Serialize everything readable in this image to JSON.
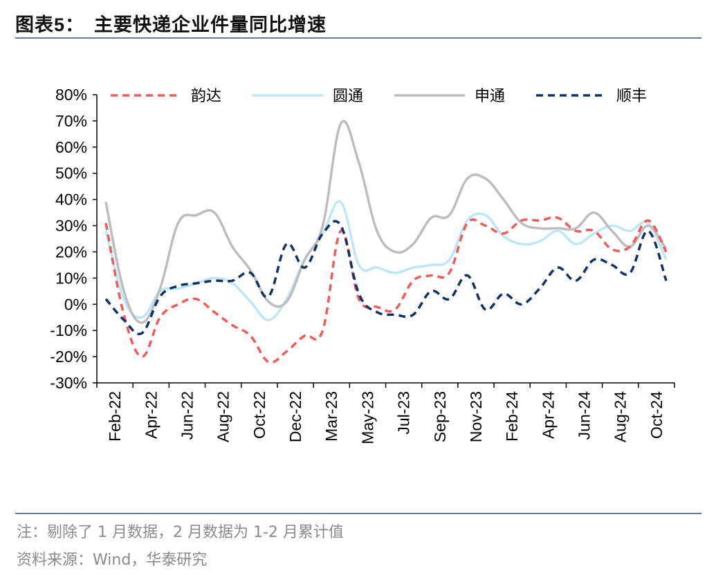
{
  "header": {
    "title_prefix": "图表",
    "title_num": "5：",
    "title_text": "主要快递企业件量同比增速"
  },
  "footer": {
    "note": "注：剔除了 1 月数据，2 月数据为 1-2 月累计值",
    "source": "资料来源：Wind，华泰研究"
  },
  "colors": {
    "yunda": "#f05a5a",
    "yto": "#bfe6f6",
    "sto": "#bdbdbd",
    "sf": "#0f3168",
    "rule": "#5b7aa6"
  },
  "chart_data": {
    "type": "line",
    "title": "主要快递企业件量同比增速",
    "xlabel": "",
    "ylabel": "",
    "ylim": [
      -30,
      80
    ],
    "yticks": [
      -30,
      -20,
      -10,
      0,
      10,
      20,
      30,
      40,
      50,
      60,
      70,
      80
    ],
    "ytick_labels": [
      "-30%",
      "-20%",
      "-10%",
      "0%",
      "10%",
      "20%",
      "30%",
      "40%",
      "50%",
      "60%",
      "70%",
      "80%"
    ],
    "x_tick_labels": [
      "Feb-22",
      "Apr-22",
      "Jun-22",
      "Aug-22",
      "Oct-22",
      "Dec-22",
      "Mar-23",
      "May-23",
      "Jul-23",
      "Sep-23",
      "Nov-23",
      "Feb-24",
      "Apr-24",
      "Jun-24",
      "Aug-24",
      "Oct-24"
    ],
    "x": [
      "Feb-22",
      "Mar-22",
      "Apr-22",
      "May-22",
      "Jun-22",
      "Jul-22",
      "Aug-22",
      "Sep-22",
      "Oct-22",
      "Nov-22",
      "Dec-22",
      "Feb-23",
      "Mar-23",
      "Apr-23",
      "May-23",
      "Jun-23",
      "Jul-23",
      "Aug-23",
      "Sep-23",
      "Oct-23",
      "Nov-23",
      "Dec-23",
      "Feb-24",
      "Mar-24",
      "Apr-24",
      "May-24",
      "Jun-24",
      "Jul-24",
      "Aug-24",
      "Sep-24",
      "Oct-24",
      "Nov-24"
    ],
    "legend_position": "top",
    "series": [
      {
        "name": "韵达",
        "style": "dashed",
        "color": "#f05a5a",
        "values": [
          31,
          -4,
          -20,
          -5,
          0,
          2,
          -3,
          -8,
          -12,
          -22,
          -18,
          -12,
          -10,
          28,
          2,
          -1,
          -2,
          9,
          11,
          12,
          31,
          30,
          27,
          32,
          32,
          33,
          28,
          28,
          21,
          22,
          32,
          20
        ]
      },
      {
        "name": "圆通",
        "style": "solid",
        "color": "#bfe6f6",
        "values": [
          28,
          2,
          -5,
          5,
          6,
          8,
          10,
          8,
          1,
          -6,
          2,
          17,
          27,
          39,
          15,
          14,
          12,
          14,
          15,
          17,
          32,
          34,
          26,
          23,
          24,
          28,
          23,
          27,
          30,
          28,
          31,
          17
        ]
      },
      {
        "name": "申通",
        "style": "solid",
        "color": "#bdbdbd",
        "values": [
          39,
          5,
          -7,
          6,
          31,
          34,
          35,
          22,
          13,
          1,
          1,
          17,
          30,
          69,
          54,
          28,
          20,
          23,
          33,
          34,
          48,
          48,
          40,
          31,
          29,
          29,
          29,
          35,
          28,
          22,
          30,
          21
        ]
      },
      {
        "name": "顺丰",
        "style": "dashed",
        "color": "#0f3168",
        "values": [
          2,
          -6,
          -11,
          3,
          7,
          8,
          9,
          9,
          12,
          3,
          23,
          14,
          27,
          30,
          4,
          -3,
          -4,
          -4,
          5,
          2,
          11,
          -2,
          4,
          0,
          6,
          14,
          9,
          17,
          15,
          12,
          28,
          9
        ]
      }
    ]
  }
}
